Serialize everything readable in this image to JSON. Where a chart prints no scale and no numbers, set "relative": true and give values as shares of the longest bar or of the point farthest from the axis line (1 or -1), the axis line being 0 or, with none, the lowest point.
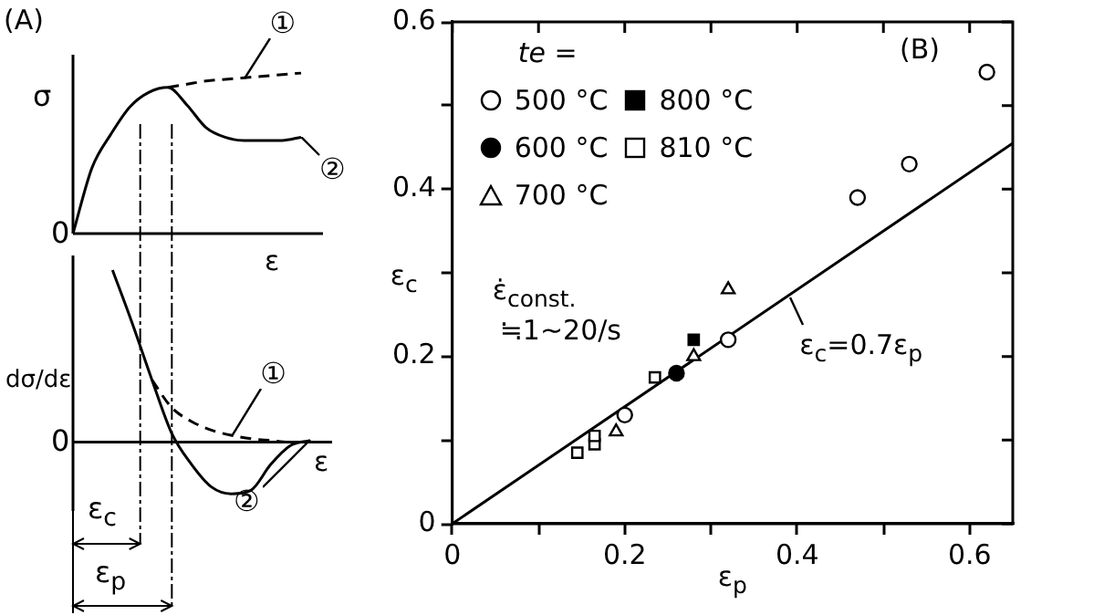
{
  "chart_data": [
    {
      "type": "line",
      "relative": true,
      "xlabel": "ε",
      "ylabel": "σ",
      "categories": [
        null,
        null,
        null,
        null,
        null,
        null,
        null,
        null,
        null,
        null,
        null,
        null,
        null
      ],
      "series": [
        {
          "name": "①",
          "color": "#000000",
          "line_style": "dashed",
          "values": [
            null,
            null,
            null,
            null,
            null,
            0.91,
            0.93,
            0.95,
            0.96,
            0.97,
            0.98,
            0.99,
            1.0
          ]
        },
        {
          "name": "②",
          "color": "#000000",
          "line_style": "solid",
          "values": [
            0,
            0.41,
            0.62,
            0.79,
            0.88,
            0.91,
            0.8,
            0.66,
            0.6,
            0.58,
            0.58,
            0.58,
            0.6
          ]
        }
      ],
      "annotations": [
        "(A)",
        "0"
      ]
    },
    {
      "type": "line",
      "relative": true,
      "xlabel": "ε",
      "ylabel": "dσ/dε",
      "categories": [
        null,
        null,
        null,
        null,
        null,
        null,
        null,
        null,
        null,
        null,
        null,
        null,
        null
      ],
      "series": [
        {
          "name": "①",
          "color": "#000000",
          "line_style": "dashed",
          "values": [
            null,
            null,
            null,
            null,
            0.36,
            0.2,
            0.12,
            0.07,
            0.04,
            0.02,
            0.01,
            0,
            0
          ]
        },
        {
          "name": "②",
          "color": "#000000",
          "line_style": "solid",
          "values": [
            null,
            null,
            1.0,
            0.69,
            0.36,
            0.05,
            -0.13,
            -0.26,
            -0.3,
            -0.28,
            -0.13,
            -0.02,
            0.01
          ]
        }
      ],
      "annotations": [
        "0",
        "ε$_{c}$",
        "ε$_{p}$"
      ]
    },
    {
      "type": "scatter",
      "xlabel": "ε$_{p}$",
      "ylabel": "ε$_{c}$",
      "legend_title": "te =",
      "legend": "top left",
      "xlim": [
        0,
        0.65
      ],
      "ylim": [
        0,
        0.6
      ],
      "xticks": [
        0,
        {
          "value": 0.1,
          "label": null
        },
        0.2,
        {
          "value": 0.3,
          "label": null
        },
        0.4,
        {
          "value": 0.5,
          "label": null
        },
        0.6
      ],
      "yticks": [
        0,
        {
          "value": 0.1,
          "label": null
        },
        0.2,
        {
          "value": 0.3,
          "label": null
        },
        0.4,
        {
          "value": 0.5,
          "label": null
        },
        0.6
      ],
      "grid": false,
      "series": [
        {
          "name": "500 °C",
          "color": "#ffffff",
          "marker": "circle",
          "x": [
            0.62,
            0.53,
            0.47,
            0.32,
            0.2
          ],
          "values": [
            0.54,
            0.43,
            0.39,
            0.22,
            0.13
          ]
        },
        {
          "name": "600 °C",
          "color": "#000000",
          "marker": "circle",
          "x": [
            0.26
          ],
          "values": [
            0.18
          ]
        },
        {
          "name": "700 °C",
          "color": "#ffffff",
          "marker": "triangle",
          "x": [
            0.32,
            0.19,
            0.28
          ],
          "values": [
            0.28,
            0.11,
            0.2
          ]
        },
        {
          "name": "800 °C",
          "color": "#000000",
          "marker": "square",
          "x": [
            0.28
          ],
          "values": [
            0.22
          ]
        },
        {
          "name": "810 °C",
          "color": "#ffffff",
          "marker": "square",
          "x": [
            0.145,
            0.165,
            0.165,
            0.235
          ],
          "values": [
            0.085,
            0.095,
            0.105,
            0.175
          ]
        },
        {
          "type": "line",
          "color": "#000000",
          "marker": "none",
          "line_style": "solid",
          "x": [
            0,
            0.65
          ],
          "values": [
            0,
            0.455
          ]
        }
      ],
      "annotations": [
        "(B)",
        "ε̇$_{const.}$",
        "≒1~20/s",
        {
          "text": "ε$_{c}$=0.7ε$_{p}$",
          "x": 0.39,
          "y": 0.273
        }
      ]
    }
  ]
}
